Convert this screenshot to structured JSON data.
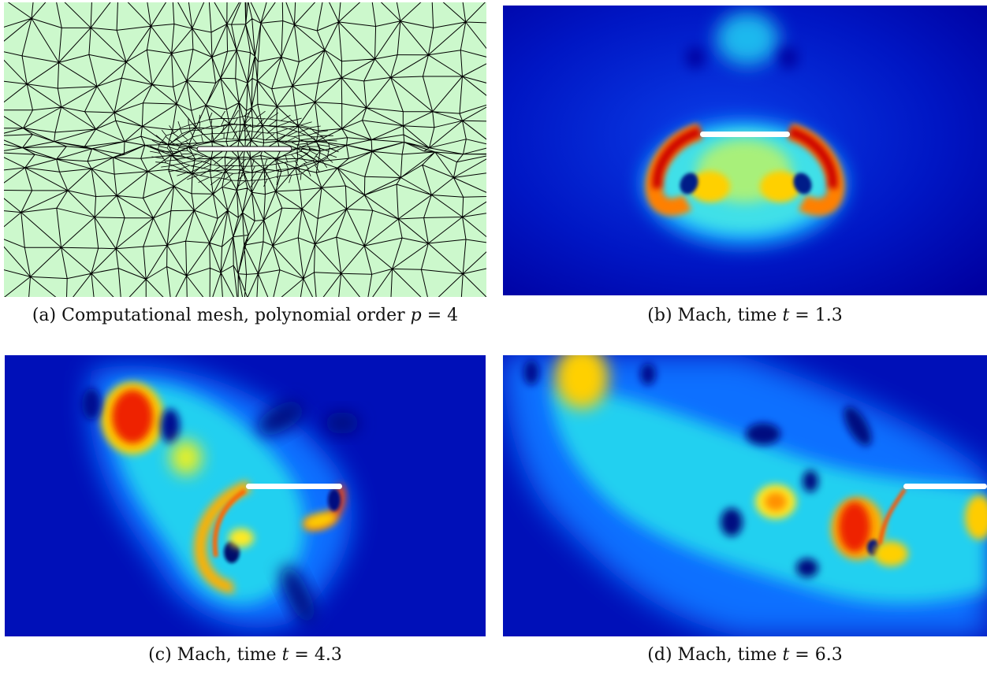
{
  "figure": {
    "panels": [
      {
        "id": "a",
        "kind": "mesh",
        "caption_tag": "(a)",
        "caption_text": "Computational mesh, polynomial order",
        "caption_var": "p",
        "caption_value": "= 4"
      },
      {
        "id": "b",
        "kind": "field",
        "field": "Mach",
        "caption_tag": "(b)",
        "caption_text": "Mach, time",
        "caption_var": "t",
        "caption_value": "= 1.3"
      },
      {
        "id": "c",
        "kind": "field",
        "field": "Mach",
        "caption_tag": "(c)",
        "caption_text": "Mach, time",
        "caption_var": "t",
        "caption_value": "= 4.3"
      },
      {
        "id": "d",
        "kind": "field",
        "field": "Mach",
        "caption_tag": "(d)",
        "caption_text": "Mach, time",
        "caption_var": "t",
        "caption_value": "= 6.3"
      }
    ],
    "colors": {
      "mesh_fill": "#ccf8cc",
      "mesh_line": "#000000",
      "plate": "#ffffff",
      "colormap": "jet",
      "jet_background": "#0000a8"
    }
  }
}
